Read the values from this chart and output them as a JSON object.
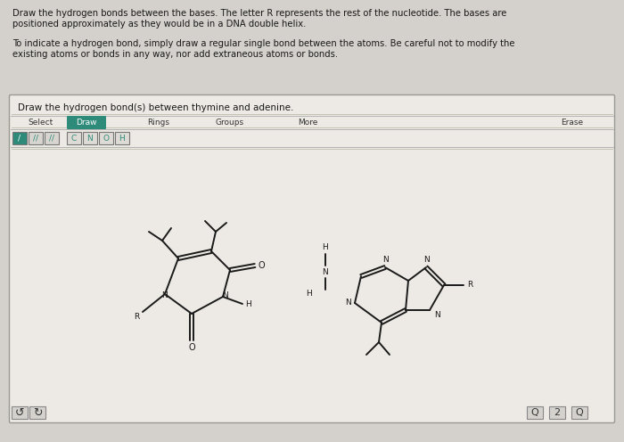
{
  "bg_color": "#d4d0cc",
  "outer_bg": "#c8c4c0",
  "box_bg": "#e8e5e0",
  "box_border": "#888880",
  "text_color": "#1a1a1a",
  "title_text1": "Draw the hydrogen bonds between the bases. The letter R represents the rest of the nucleotide. The bases are",
  "title_text2": "positioned approximately as they would be in a DNA double helix.",
  "subtitle_text1": "To indicate a hydrogen bond, simply draw a regular single bond between the atoms. Be careful not to modify the",
  "subtitle_text2": "existing atoms or bonds in any way, nor add extraneous atoms or bonds.",
  "box_title": "Draw the hydrogen bond(s) between thymine and adenine.",
  "draw_btn_color": "#2e8b7a",
  "draw_btn_text": "#ffffff",
  "bond_btn_color": "#2e8b7a",
  "atom_btn_color": "#e8e5e0",
  "atom_btn_border": "#888",
  "mol_line_color": "#1a1a1a",
  "n_color": "#1a1a1a",
  "o_color": "#1a1a1a",
  "fig_width": 7.0,
  "fig_height": 4.96,
  "dpi": 100
}
